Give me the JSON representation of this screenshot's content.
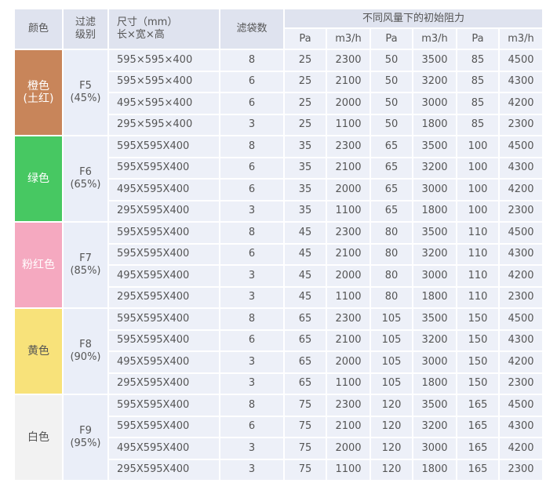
{
  "header": {
    "color": "颜色",
    "grade_line1": "过滤",
    "grade_line2": "级别",
    "size_line1": "尺寸（mm）",
    "size_line2": "长×宽×高",
    "bags": "滤袋数",
    "resistance": "不同风量下的初始阻力",
    "units": [
      "Pa",
      "m3/h",
      "Pa",
      "m3/h",
      "Pa",
      "m3/h"
    ]
  },
  "groups": [
    {
      "color_name": "橙色",
      "color_sub": "(土红)",
      "swatch": "#c8855a",
      "grade": "F5",
      "efficiency": "(45%)",
      "rows": [
        {
          "size": "595×595×400",
          "bags": "8",
          "pa1": "25",
          "q1": "2300",
          "pa2": "50",
          "q2": "3500",
          "pa3": "85",
          "q3": "4500"
        },
        {
          "size": "595×595×400",
          "bags": "6",
          "pa1": "25",
          "q1": "2100",
          "pa2": "50",
          "q2": "3200",
          "pa3": "85",
          "q3": "4300"
        },
        {
          "size": "495×595×400",
          "bags": "6",
          "pa1": "25",
          "q1": "2000",
          "pa2": "50",
          "q2": "3000",
          "pa3": "85",
          "q3": "4200"
        },
        {
          "size": "295×595×400",
          "bags": "3",
          "pa1": "25",
          "q1": "1100",
          "pa2": "50",
          "q2": "1800",
          "pa3": "85",
          "q3": "2300"
        }
      ]
    },
    {
      "color_name": "绿色",
      "color_sub": "",
      "swatch": "#47c862",
      "grade": "F6",
      "efficiency": "(65%)",
      "rows": [
        {
          "size": "595X595X400",
          "bags": "8",
          "pa1": "35",
          "q1": "2300",
          "pa2": "65",
          "q2": "3500",
          "pa3": "100",
          "q3": "4500"
        },
        {
          "size": "595X595X400",
          "bags": "6",
          "pa1": "35",
          "q1": "2100",
          "pa2": "65",
          "q2": "3200",
          "pa3": "100",
          "q3": "4300"
        },
        {
          "size": "495X595X400",
          "bags": "6",
          "pa1": "35",
          "q1": "2000",
          "pa2": "65",
          "q2": "3000",
          "pa3": "100",
          "q3": "4200"
        },
        {
          "size": "295X595X400",
          "bags": "3",
          "pa1": "35",
          "q1": "1100",
          "pa2": "65",
          "q2": "1800",
          "pa3": "100",
          "q3": "2300"
        }
      ]
    },
    {
      "color_name": "粉红色",
      "color_sub": "",
      "swatch": "#f5a9c0",
      "grade": "F7",
      "efficiency": "(85%)",
      "rows": [
        {
          "size": "595X595X400",
          "bags": "8",
          "pa1": "45",
          "q1": "2300",
          "pa2": "80",
          "q2": "3500",
          "pa3": "110",
          "q3": "4500"
        },
        {
          "size": "595X595X400",
          "bags": "6",
          "pa1": "45",
          "q1": "2100",
          "pa2": "80",
          "q2": "3200",
          "pa3": "110",
          "q3": "4300"
        },
        {
          "size": "495X595X400",
          "bags": "3",
          "pa1": "45",
          "q1": "2000",
          "pa2": "80",
          "q2": "3000",
          "pa3": "110",
          "q3": "4200"
        },
        {
          "size": "295X595X400",
          "bags": "3",
          "pa1": "45",
          "q1": "1100",
          "pa2": "80",
          "q2": "1800",
          "pa3": "110",
          "q3": "2300"
        }
      ]
    },
    {
      "color_name": "黄色",
      "color_sub": "",
      "swatch": "#f8e27a",
      "text_color": "#555555",
      "grade": "F8",
      "efficiency": "(90%)",
      "rows": [
        {
          "size": "595X595X400",
          "bags": "8",
          "pa1": "65",
          "q1": "2300",
          "pa2": "105",
          "q2": "3500",
          "pa3": "150",
          "q3": "4500"
        },
        {
          "size": "595X595X400",
          "bags": "6",
          "pa1": "65",
          "q1": "2100",
          "pa2": "105",
          "q2": "3200",
          "pa3": "150",
          "q3": "4300"
        },
        {
          "size": "495X595X400",
          "bags": "3",
          "pa1": "65",
          "q1": "2000",
          "pa2": "105",
          "q2": "3000",
          "pa3": "150",
          "q3": "4200"
        },
        {
          "size": "295X595X400",
          "bags": "3",
          "pa1": "65",
          "q1": "1100",
          "pa2": "105",
          "q2": "1800",
          "pa3": "150",
          "q3": "2300"
        }
      ]
    },
    {
      "color_name": "白色",
      "color_sub": "",
      "swatch": "#f2f2f2",
      "text_color": "#555555",
      "grade": "F9",
      "efficiency": "(95%)",
      "rows": [
        {
          "size": "595X595X400",
          "bags": "8",
          "pa1": "75",
          "q1": "2300",
          "pa2": "120",
          "q2": "3500",
          "pa3": "165",
          "q3": "4500"
        },
        {
          "size": "595X595X400",
          "bags": "6",
          "pa1": "75",
          "q1": "2100",
          "pa2": "120",
          "q2": "3200",
          "pa3": "165",
          "q3": "4300"
        },
        {
          "size": "495X595X400",
          "bags": "3",
          "pa1": "75",
          "q1": "2000",
          "pa2": "120",
          "q2": "3000",
          "pa3": "165",
          "q3": "4200"
        },
        {
          "size": "295X595X400",
          "bags": "3",
          "pa1": "75",
          "q1": "1100",
          "pa2": "120",
          "q2": "1800",
          "pa3": "165",
          "q3": "2300"
        }
      ]
    }
  ]
}
